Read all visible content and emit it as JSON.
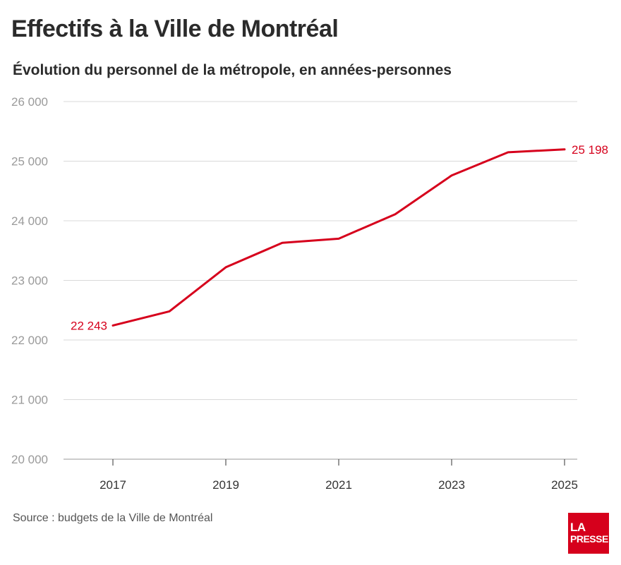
{
  "header": {
    "title": "Effectifs à la Ville de Montréal",
    "subtitle": "Évolution du personnel de la métropole, en années-personnes"
  },
  "footer": {
    "source": "Source : budgets de la Ville de Montréal",
    "logo_line1": "LA",
    "logo_line2": "PRESSE"
  },
  "colors": {
    "line": "#d6001c",
    "grid": "#d9d9d9",
    "tick_text": "#9a9a9a",
    "logo_bg": "#d6001c"
  },
  "chart_data": {
    "type": "line",
    "x": [
      2017,
      2018,
      2019,
      2020,
      2021,
      2022,
      2023,
      2024,
      2025
    ],
    "series": [
      {
        "values": [
          22243,
          22480,
          23220,
          23630,
          23700,
          24110,
          24760,
          25150,
          25198
        ]
      }
    ],
    "ylim": [
      20000,
      26000
    ],
    "yticks": [
      20000,
      21000,
      22000,
      23000,
      24000,
      25000,
      26000
    ],
    "ytick_labels": [
      "20 000",
      "21 000",
      "22 000",
      "23 000",
      "24 000",
      "25 000",
      "26 000"
    ],
    "xticks": [
      2017,
      2019,
      2021,
      2023,
      2025
    ],
    "xtick_labels": [
      "2017",
      "2019",
      "2021",
      "2023",
      "2025"
    ],
    "annotations": [
      {
        "x": 2017,
        "y": 22243,
        "text": "22 243",
        "side": "left"
      },
      {
        "x": 2025,
        "y": 25198,
        "text": "25 198",
        "side": "right"
      }
    ],
    "grid": true,
    "xlabel": "",
    "ylabel": ""
  }
}
